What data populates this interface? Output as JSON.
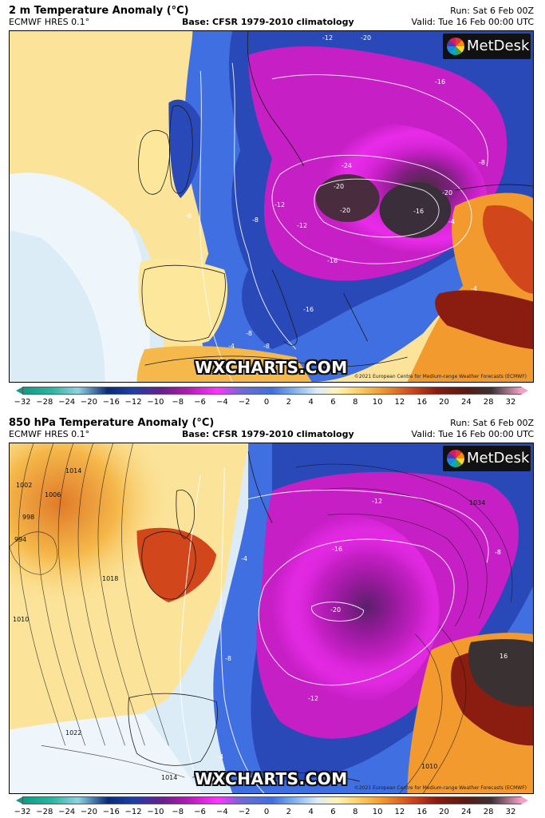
{
  "panels": [
    {
      "title": "2 m Temperature Anomaly (°C)",
      "model": "ECMWF HRES 0.1°",
      "base": "Base: CFSR 1979-2010 climatology",
      "run": "Run: Sat 6 Feb 00Z",
      "valid": "Valid: Tue 16 Feb 00:00 UTC",
      "logo_text": "MetDesk",
      "watermark": "WXCHARTS.COM",
      "copyright": "©2021 European Centre for Medium-range Weather Forecasts (ECMWF)",
      "contour_labels": [
        "-12",
        "-20",
        "-16",
        "-8",
        "-24",
        "-20",
        "-20",
        "-20",
        "-16",
        "-12",
        "-8",
        "-16",
        "-4",
        "-8",
        "-12",
        "-16",
        "-8",
        "-4",
        "-8",
        "-4"
      ]
    },
    {
      "title": "850 hPa Temperature Anomaly (°C)",
      "model": "ECMWF HRES 0.1°",
      "base": "Base: CFSR 1979-2010 climatology",
      "run": "Run: Sat 6 Feb 00Z",
      "valid": "Valid: Tue 16 Feb 00:00 UTC",
      "logo_text": "MetDesk",
      "watermark": "WXCHARTS.COM",
      "copyright": "©2021 European Centre for Medium-range Weather Forecasts (ECMWF)",
      "contour_labels": [
        "1002",
        "1006",
        "1014",
        "998",
        "994",
        "1018",
        "1010",
        "1022",
        "1034",
        "-12",
        "-16",
        "-8",
        "-20",
        "-4",
        "-12",
        "-8",
        "16",
        "1010",
        "1014",
        "-4"
      ]
    }
  ],
  "colorbar": {
    "ticks": [
      "−32",
      "−28",
      "−24",
      "−20",
      "−16",
      "−12",
      "−10",
      "−8",
      "−6",
      "−4",
      "−2",
      "0",
      "2",
      "4",
      "6",
      "8",
      "10",
      "12",
      "16",
      "20",
      "24",
      "28",
      "32"
    ]
  },
  "colors": {
    "strong_cold": "#c61fc6",
    "cold": "#2a49b8",
    "cool": "#8ab8f0",
    "neutral": "#fff6c8",
    "warm": "#f29a2e",
    "strong_warm": "#8a1c10"
  }
}
